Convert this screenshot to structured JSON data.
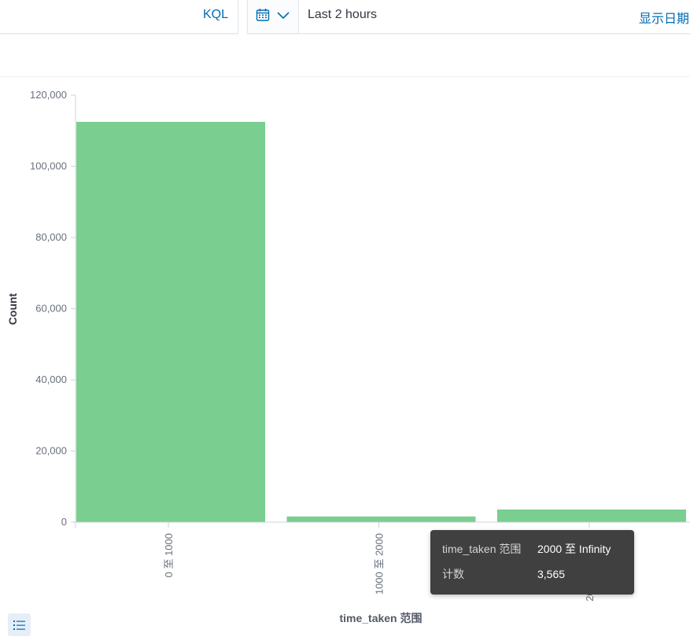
{
  "toolbar": {
    "query_language": "KQL",
    "time_range": "Last 2 hours",
    "show_dates": "显示日期"
  },
  "icons": {
    "calendar": "calendar-icon",
    "chevron": "chevron-down-icon",
    "legend": "list-icon"
  },
  "colors": {
    "bar": "#7ace8f",
    "link": "#006bb4",
    "tooltip_bg": "#404040"
  },
  "chart_data": {
    "type": "bar",
    "categories": [
      "0 至 1000",
      "1000 至 2000",
      "2000 至 Infinity"
    ],
    "values": [
      112500,
      1600,
      3565
    ],
    "xlabel": "time_taken 范围",
    "ylabel": "Count",
    "ylim": [
      0,
      120000
    ],
    "yticks": [
      0,
      20000,
      40000,
      60000,
      80000,
      100000,
      120000
    ],
    "ytick_labels": [
      "0",
      "20,000",
      "40,000",
      "60,000",
      "80,000",
      "100,000",
      "120,000"
    ],
    "grid": false,
    "legend": "none"
  },
  "tooltip": {
    "rows": [
      {
        "key": "time_taken 范围",
        "value": "2000 至 Infinity"
      },
      {
        "key": "计数",
        "value": "3,565"
      }
    ]
  }
}
